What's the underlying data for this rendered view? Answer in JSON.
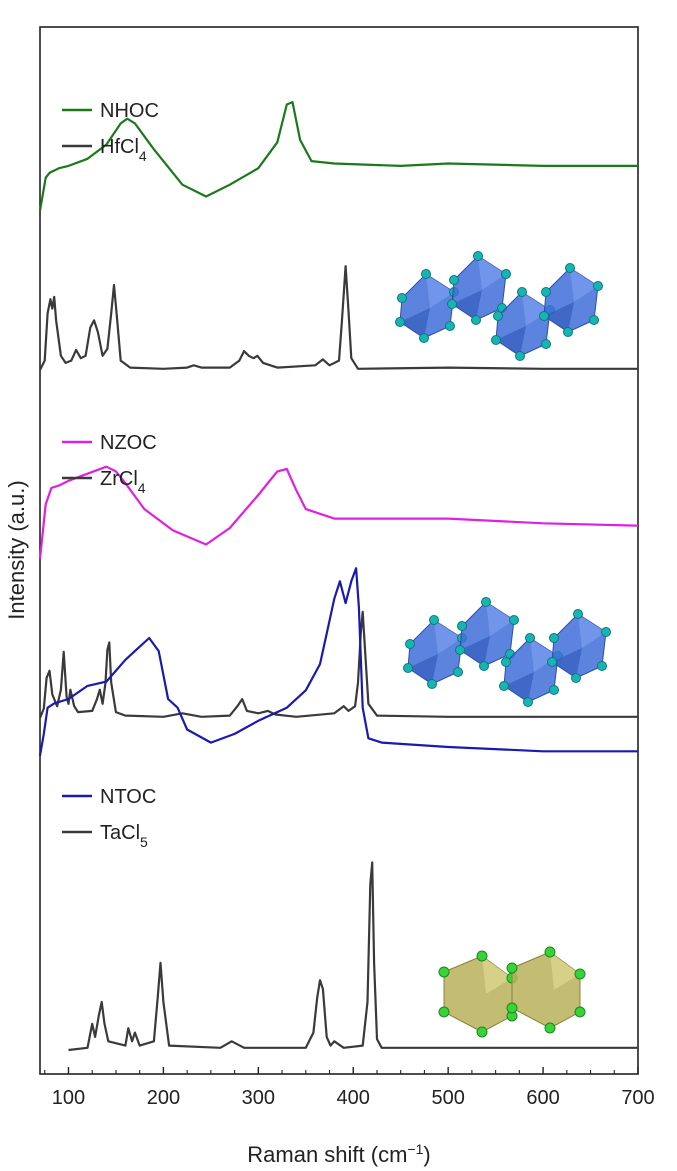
{
  "chart_data": {
    "type": "line",
    "title": "",
    "xlabel": "Raman shift (cm",
    "xlabel_sup": "−1",
    "xlabel_end": ")",
    "ylabel": "Intensity (a.u.)",
    "xlim": [
      70,
      700
    ],
    "xticks": [
      100,
      200,
      300,
      400,
      500,
      600,
      700
    ],
    "y_ticks_shown": false,
    "grid": false,
    "legend_placement": "left, above each pair of spectra",
    "colors": {
      "NHOC": "#1a7a1a",
      "NZOC": "#e020e0",
      "NTOC": "#1a1ab0",
      "reference": "#3a3a3a"
    },
    "panels": [
      {
        "legend": [
          {
            "name": "NHOC",
            "sub": "",
            "color": "#1a7a1a"
          },
          {
            "name": "HfCl",
            "sub": "4",
            "color": "#3a3a3a"
          }
        ],
        "inset_icon": "blue-octahedra-chain-icon",
        "series": [
          {
            "name": "NHOC",
            "color": "#1a7a1a",
            "offset": 1.35,
            "x": [
              70,
              76,
              80,
              90,
              100,
              120,
              140,
              155,
              162,
              170,
              190,
              220,
              245,
              270,
              300,
              320,
              330,
              336,
              344,
              356,
              380,
              450,
              500,
              600,
              700
            ],
            "y": [
              0.0,
              0.28,
              0.32,
              0.36,
              0.38,
              0.44,
              0.56,
              0.74,
              0.78,
              0.74,
              0.52,
              0.22,
              0.12,
              0.22,
              0.36,
              0.58,
              0.9,
              0.92,
              0.6,
              0.42,
              0.4,
              0.38,
              0.4,
              0.38,
              0.38
            ]
          },
          {
            "name": "HfCl4",
            "color": "#3a3a3a",
            "offset": 0,
            "x": [
              70,
              75,
              78,
              81,
              83,
              85,
              87,
              92,
              97,
              103,
              108,
              113,
              118,
              123,
              127,
              131,
              136,
              141,
              145,
              148,
              151,
              155,
              165,
              200,
              225,
              232,
              240,
              270,
              280,
              285,
              290,
              295,
              299,
              305,
              320,
              360,
              368,
              375,
              385,
              388,
              392,
              395,
              398,
              405,
              500,
              600,
              700
            ],
            "y": [
              0.0,
              0.08,
              0.48,
              0.6,
              0.52,
              0.62,
              0.42,
              0.12,
              0.06,
              0.08,
              0.17,
              0.1,
              0.12,
              0.36,
              0.42,
              0.32,
              0.12,
              0.18,
              0.48,
              0.72,
              0.45,
              0.08,
              0.02,
              0.01,
              0.02,
              0.04,
              0.02,
              0.02,
              0.08,
              0.16,
              0.12,
              0.1,
              0.12,
              0.06,
              0.02,
              0.04,
              0.09,
              0.04,
              0.08,
              0.4,
              0.88,
              0.5,
              0.1,
              0.01,
              0.02,
              0.01,
              0.01
            ]
          }
        ]
      },
      {
        "legend": [
          {
            "name": "NZOC",
            "sub": "",
            "color": "#e020e0"
          },
          {
            "name": "ZrCl",
            "sub": "4",
            "color": "#3a3a3a"
          }
        ],
        "inset_icon": "blue-octahedra-chain-icon",
        "series": [
          {
            "name": "NZOC",
            "color": "#e020e0",
            "offset": 1.35,
            "x": [
              70,
              76,
              82,
              90,
              100,
              120,
              140,
              150,
              160,
              180,
              210,
              245,
              270,
              300,
              320,
              330,
              340,
              350,
              380,
              450,
              500,
              600,
              700
            ],
            "y": [
              0.0,
              0.46,
              0.6,
              0.62,
              0.66,
              0.72,
              0.78,
              0.74,
              0.64,
              0.42,
              0.24,
              0.12,
              0.26,
              0.54,
              0.74,
              0.76,
              0.58,
              0.42,
              0.34,
              0.34,
              0.34,
              0.3,
              0.28
            ]
          },
          {
            "name": "ZrCl4",
            "color": "#3a3a3a",
            "offset": 0,
            "x": [
              70,
              74,
              77,
              80,
              83,
              88,
              92,
              95,
              98,
              100,
              102,
              106,
              110,
              125,
              130,
              133,
              136,
              139,
              141,
              143,
              145,
              150,
              160,
              200,
              220,
              240,
              270,
              278,
              283,
              288,
              300,
              310,
              318,
              340,
              380,
              390,
              395,
              402,
              405,
              408,
              410,
              413,
              416,
              425,
              500,
              600,
              700
            ],
            "y": [
              0.0,
              0.08,
              0.34,
              0.4,
              0.2,
              0.1,
              0.24,
              0.56,
              0.18,
              0.12,
              0.24,
              0.1,
              0.05,
              0.06,
              0.16,
              0.24,
              0.12,
              0.3,
              0.58,
              0.64,
              0.3,
              0.05,
              0.02,
              0.01,
              0.04,
              0.01,
              0.02,
              0.1,
              0.16,
              0.06,
              0.04,
              0.06,
              0.03,
              0.01,
              0.04,
              0.1,
              0.06,
              0.1,
              0.3,
              0.72,
              0.9,
              0.5,
              0.12,
              0.02,
              0.01,
              0.01,
              0.01
            ]
          }
        ]
      },
      {
        "legend": [
          {
            "name": "NTOC",
            "sub": "",
            "color": "#1a1ab0"
          },
          {
            "name": "TaCl",
            "sub": "5",
            "color": "#3a3a3a"
          }
        ],
        "inset_icon": "yellow-octahedra-pair-icon",
        "series": [
          {
            "name": "NTOC",
            "color": "#1a1ab0",
            "offset": 1.35,
            "x": [
              70,
              74,
              78,
              85,
              100,
              120,
              140,
              160,
              170,
              185,
              195,
              205,
              215,
              225,
              250,
              275,
              300,
              330,
              350,
              365,
              372,
              380,
              386,
              392,
              398,
              403,
              406,
              410,
              416,
              430,
              500,
              600,
              700
            ],
            "y": [
              0.0,
              0.1,
              0.22,
              0.24,
              0.26,
              0.32,
              0.34,
              0.44,
              0.48,
              0.54,
              0.48,
              0.26,
              0.22,
              0.12,
              0.06,
              0.1,
              0.16,
              0.22,
              0.3,
              0.42,
              0.56,
              0.72,
              0.8,
              0.7,
              0.8,
              0.86,
              0.68,
              0.22,
              0.08,
              0.06,
              0.04,
              0.02,
              0.02
            ]
          },
          {
            "name": "TaCl5",
            "color": "#3a3a3a",
            "offset": 0,
            "x": [
              100,
              120,
              125,
              128,
              132,
              135,
              138,
              142,
              160,
              163,
              167,
              170,
              175,
              190,
              194,
              197,
              200,
              206,
              260,
              272,
              285,
              350,
              358,
              362,
              365,
              368,
              372,
              376,
              380,
              390,
              410,
              415,
              418,
              420,
              422,
              425,
              430,
              500,
              600,
              700
            ],
            "y": [
              0.0,
              0.01,
              0.12,
              0.06,
              0.16,
              0.22,
              0.12,
              0.04,
              0.02,
              0.1,
              0.04,
              0.08,
              0.02,
              0.04,
              0.24,
              0.4,
              0.22,
              0.02,
              0.01,
              0.04,
              0.01,
              0.01,
              0.08,
              0.24,
              0.32,
              0.28,
              0.06,
              0.02,
              0.04,
              0.01,
              0.02,
              0.22,
              0.76,
              0.86,
              0.4,
              0.05,
              0.01,
              0.01,
              0.01,
              0.01
            ]
          }
        ]
      }
    ]
  }
}
